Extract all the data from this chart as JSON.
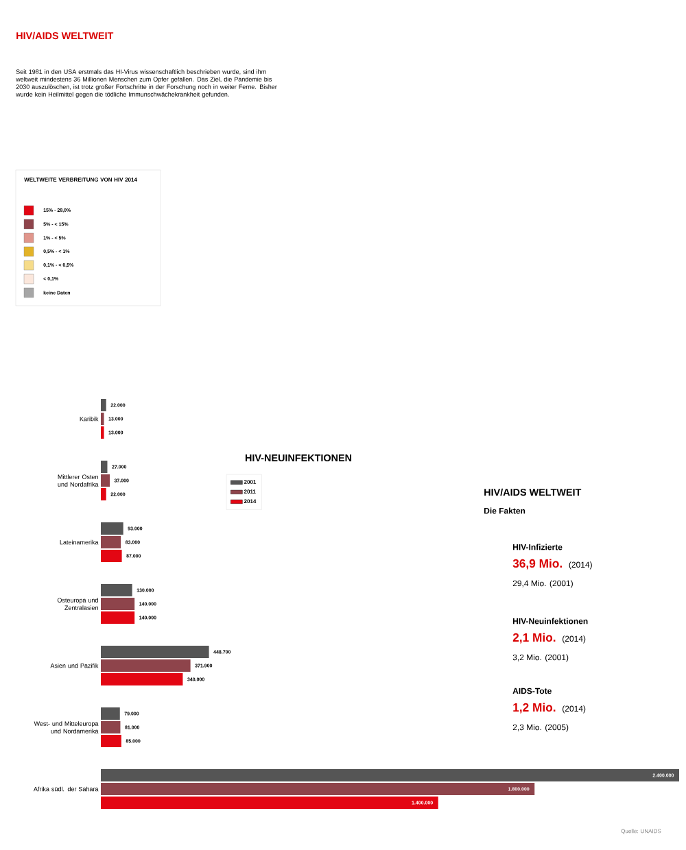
{
  "chart_data": {
    "type": "bar",
    "orientation": "horizontal",
    "title": "HIV-NEUINFEKTIONEN",
    "categories": [
      "Karibik",
      "Mittlerer Osten und Nordafrika",
      "Lateinamerika",
      "Osteuropa und Zentralasien",
      "Asien und Pazifik",
      "West- und Mitteleuropa und Nordamerika",
      "Afrika südl. der Sahara"
    ],
    "series": [
      {
        "name": "2001",
        "color": "#555555",
        "values": [
          22000,
          27000,
          93000,
          130000,
          448700,
          79000,
          2400000
        ],
        "value_labels": [
          "22.000",
          "27.000",
          "93.000",
          "130.000",
          "448.700",
          "79.000",
          "2.400.000"
        ]
      },
      {
        "name": "2011",
        "color": "#8e444b",
        "values": [
          13000,
          37000,
          83000,
          140000,
          371900,
          81000,
          1800000
        ],
        "value_labels": [
          "13.000",
          "37.000",
          "83.000",
          "140.000",
          "371.900",
          "81.000",
          "1.800.000"
        ]
      },
      {
        "name": "2014",
        "color": "#e30613",
        "values": [
          13000,
          22000,
          87000,
          140000,
          340000,
          85000,
          1400000
        ],
        "value_labels": [
          "13.000",
          "22.000",
          "87.000",
          "140.000",
          "340.000",
          "85.000",
          "1.400.000"
        ]
      }
    ],
    "legend": "top left",
    "tick_labels": "y",
    "annotations": [
      "HIV/AIDS WELTWEIT",
      "Seit 1981 in den USA erstmals das HI-Virus wissenschaftlich beschrieben wurde, sind ihm weltweit mindestens 36 Millionen Menschen zum Opfer gefallen. Das Ziel, die Pandemie bis 2030 auszulöschen, ist trotz großer Fortschritte in der Forschung noch in weiter Ferne. Bisher wurde kein Heilmittel gegen die tödliche Immunschwächekrankheit gefunden.",
      "WELTWEITE VERBREITUNG VON HIV 2014",
      "15%  - 28,0%",
      "5%  - < 15%",
      "1%  - < 5%",
      "0,5% - < 1%",
      "0,1% - < 0,5%",
      "< 0,1%",
      "keine Daten",
      "HIV/AIDS WELTWEIT",
      "Die Fakten",
      "HIV-Infizierte",
      "36,9 Mio.",
      "(2014)",
      "29,4 Mio. (2001)",
      "HIV-Neuinfektionen",
      "2,1 Mio.",
      "(2014)",
      "3,2 Mio. (2001)",
      "AIDS-Tote",
      "1,2 Mio.",
      "(2014)",
      "2,3 Mio. (2005)",
      "Quelle: UNAIDS"
    ]
  }
}
